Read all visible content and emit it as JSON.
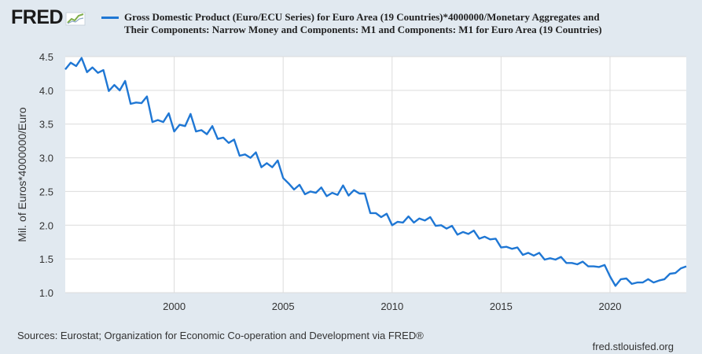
{
  "header": {
    "logo_text": "FRED",
    "legend_text": "Gross Domestic Product (Euro/ECU Series) for Euro Area (19 Countries)*4000000/Monetary Aggregates and Their Components: Narrow Money and Components: M1 and Components: M1 for Euro Area (19 Countries)"
  },
  "footer": {
    "sources": "Sources: Eurostat; Organization for Economic Co-operation and Development via FRED®",
    "site": "fred.stlouisfed.org"
  },
  "colors": {
    "series": "#1f77d4",
    "background": "#e1e9f0",
    "plot": "#ffffff",
    "grid": "#dcdcdc"
  },
  "chart_data": {
    "type": "line",
    "title": "",
    "xlabel": "",
    "ylabel": "Mil. of Euros*4000000/Euro",
    "xlim": [
      1995.0,
      2023.5
    ],
    "ylim": [
      1.0,
      4.5
    ],
    "yticks": [
      "1.0",
      "1.5",
      "2.0",
      "2.5",
      "3.0",
      "3.5",
      "4.0",
      "4.5"
    ],
    "xticks": [
      "2000",
      "2005",
      "2010",
      "2015",
      "2020"
    ],
    "grid": true,
    "legend_position": "top",
    "series": [
      {
        "name": "Gross Domestic Product (Euro/ECU Series) for Euro Area (19 Countries)*4000000/Monetary Aggregates and Their Components: Narrow Money and Components: M1 and Components: M1 for Euro Area (19 Countries)",
        "x_start": 1995.0,
        "x_step": 0.25,
        "values": [
          4.31,
          4.41,
          4.36,
          4.48,
          4.27,
          4.34,
          4.26,
          4.3,
          3.99,
          4.08,
          4.0,
          4.14,
          3.8,
          3.82,
          3.81,
          3.91,
          3.53,
          3.56,
          3.53,
          3.66,
          3.39,
          3.49,
          3.47,
          3.65,
          3.39,
          3.41,
          3.35,
          3.47,
          3.28,
          3.3,
          3.22,
          3.27,
          3.03,
          3.05,
          3.0,
          3.08,
          2.86,
          2.92,
          2.86,
          2.96,
          2.7,
          2.62,
          2.53,
          2.6,
          2.46,
          2.5,
          2.48,
          2.56,
          2.43,
          2.48,
          2.45,
          2.59,
          2.44,
          2.52,
          2.47,
          2.47,
          2.18,
          2.18,
          2.12,
          2.17,
          2.0,
          2.05,
          2.04,
          2.13,
          2.04,
          2.1,
          2.07,
          2.12,
          1.99,
          2.0,
          1.95,
          1.99,
          1.86,
          1.9,
          1.87,
          1.92,
          1.8,
          1.83,
          1.79,
          1.8,
          1.67,
          1.68,
          1.65,
          1.67,
          1.56,
          1.59,
          1.55,
          1.59,
          1.49,
          1.51,
          1.49,
          1.53,
          1.44,
          1.44,
          1.42,
          1.46,
          1.39,
          1.39,
          1.38,
          1.41,
          1.24,
          1.1,
          1.2,
          1.21,
          1.13,
          1.15,
          1.15,
          1.2,
          1.15,
          1.18,
          1.2,
          1.28,
          1.29,
          1.36,
          1.39
        ]
      }
    ]
  }
}
